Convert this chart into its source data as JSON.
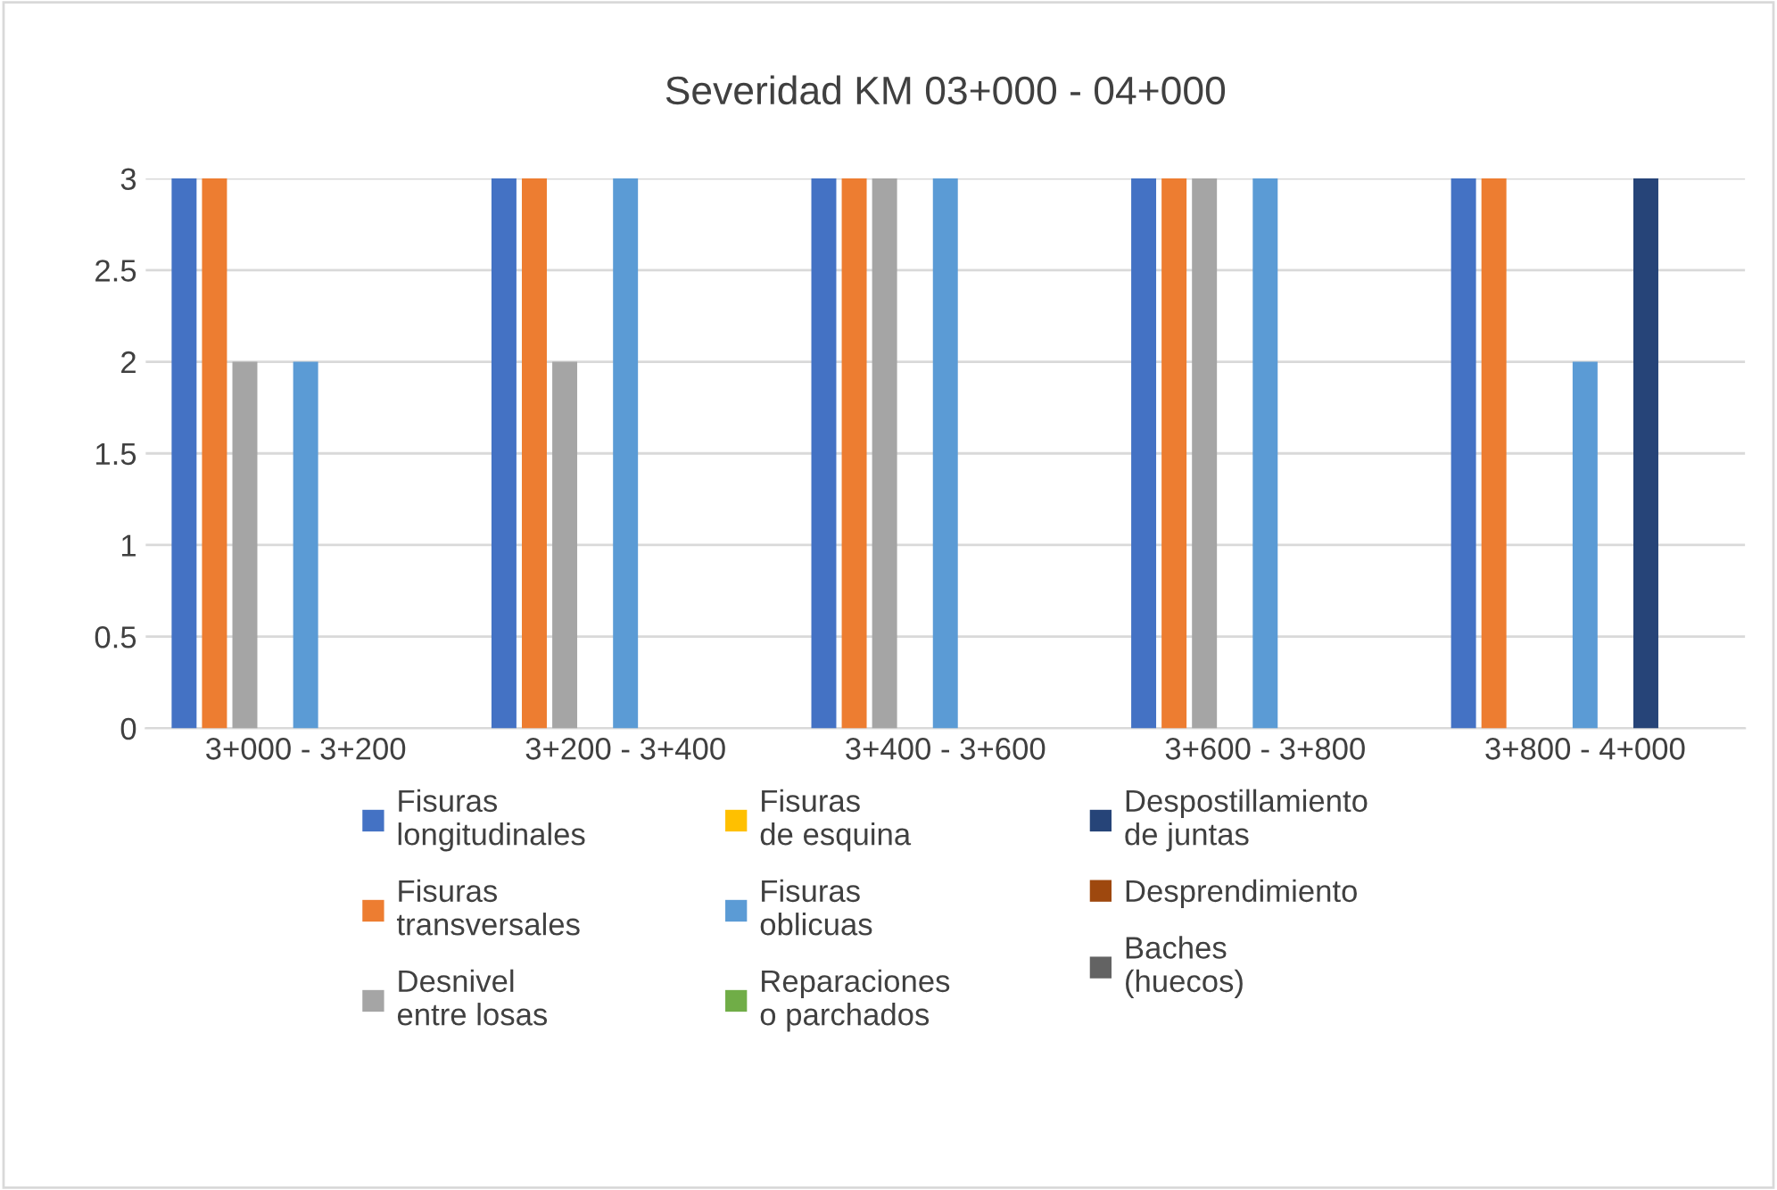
{
  "chart_data": {
    "type": "bar",
    "title": "Severidad KM 03+000 - 04+000",
    "categories": [
      "3+000 - 3+200",
      "3+200 - 3+400",
      "3+400 - 3+600",
      "3+600 - 3+800",
      "3+800 - 4+000"
    ],
    "series": [
      {
        "name": "Fisuras longitudinales",
        "color": "#4472c4",
        "values": [
          3,
          3,
          3,
          3,
          3
        ]
      },
      {
        "name": "Fisuras transversales",
        "color": "#ed7d31",
        "values": [
          3,
          3,
          3,
          3,
          3
        ]
      },
      {
        "name": "Desnivel entre losas",
        "color": "#a5a5a5",
        "values": [
          2,
          2,
          3,
          3,
          0
        ]
      },
      {
        "name": "Fisuras de esquina",
        "color": "#ffc000",
        "values": [
          0,
          0,
          0,
          0,
          0
        ]
      },
      {
        "name": "Fisuras oblicuas",
        "color": "#5b9bd5",
        "values": [
          2,
          3,
          3,
          3,
          2
        ]
      },
      {
        "name": "Reparaciones o parchados",
        "color": "#70ad47",
        "values": [
          0,
          0,
          0,
          0,
          0
        ]
      },
      {
        "name": "Despostillamiento de juntas",
        "color": "#264478",
        "values": [
          0,
          0,
          0,
          0,
          3
        ]
      },
      {
        "name": "Desprendimiento",
        "color": "#9e480e",
        "values": [
          0,
          0,
          0,
          0,
          0
        ]
      },
      {
        "name": "Baches (huecos)",
        "color": "#636363",
        "values": [
          0,
          0,
          0,
          0,
          0
        ]
      }
    ],
    "ylim": [
      0,
      3
    ],
    "yticks": [
      0,
      0.5,
      1,
      1.5,
      2,
      2.5,
      3
    ],
    "grid": "y",
    "legend": "bottom"
  }
}
